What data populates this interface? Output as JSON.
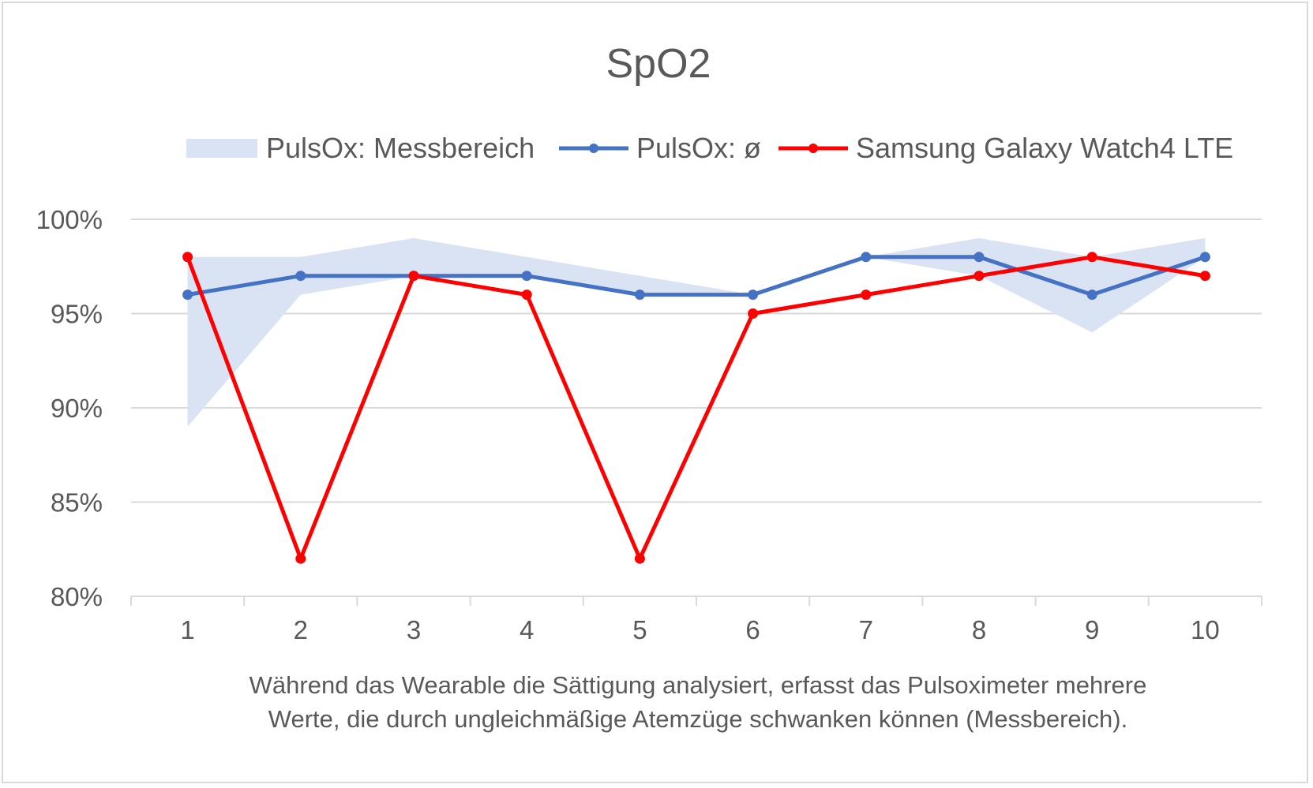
{
  "chart_data": {
    "type": "line",
    "title": "SpO2",
    "x": [
      "1",
      "2",
      "3",
      "4",
      "5",
      "6",
      "7",
      "8",
      "9",
      "10"
    ],
    "xlabel_lines": [
      "Während das Wearable die Sättigung analysiert, erfasst das Pulsoximeter mehrere",
      "Werte, die durch ungleichmäßige Atemzüge schwanken können (Messbereich)."
    ],
    "ylabel": "",
    "ylim": [
      0.8,
      1.0
    ],
    "yticks": [
      0.8,
      0.85,
      0.9,
      0.95,
      1.0
    ],
    "ytick_labels": [
      "80%",
      "85%",
      "90%",
      "95%",
      "100%"
    ],
    "grid": true,
    "legend_position": "top",
    "range_band": {
      "name": "PulsOx: Messbereich",
      "color": "#dae3f3",
      "low": [
        0.89,
        0.96,
        0.97,
        0.97,
        0.96,
        0.96,
        0.98,
        0.97,
        0.94,
        0.98
      ],
      "high": [
        0.98,
        0.98,
        0.99,
        0.98,
        0.97,
        0.96,
        0.98,
        0.99,
        0.98,
        0.99
      ]
    },
    "series": [
      {
        "name": "PulsOx: ø",
        "color": "#4472c4",
        "values": [
          0.96,
          0.97,
          0.97,
          0.97,
          0.96,
          0.96,
          0.98,
          0.98,
          0.96,
          0.98
        ]
      },
      {
        "name": "Samsung Galaxy Watch4 LTE",
        "color": "#ff0000",
        "values": [
          0.98,
          0.82,
          0.97,
          0.96,
          0.82,
          0.95,
          0.96,
          0.97,
          0.98,
          0.97
        ]
      }
    ],
    "gridline_color": "#d9d9d9",
    "text_color": "#595959"
  }
}
